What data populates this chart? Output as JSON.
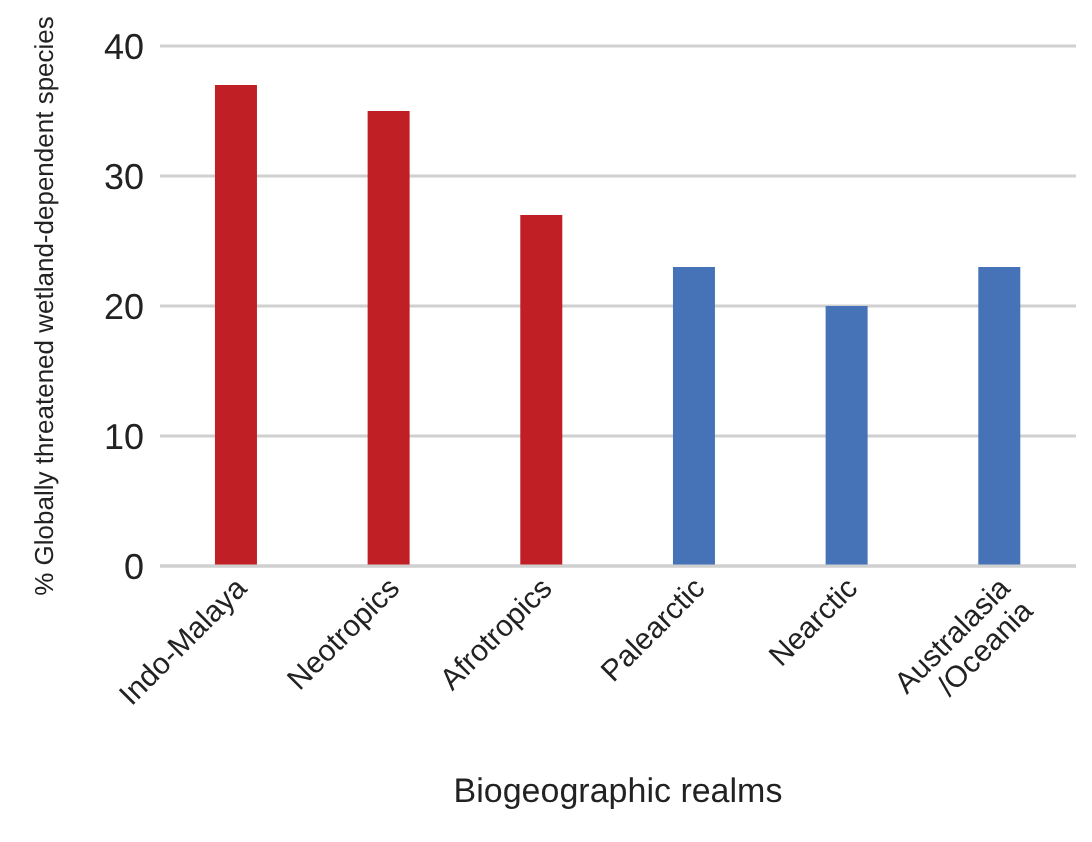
{
  "chart_data": {
    "type": "bar",
    "xlabel": "Biogeographic realms",
    "ylabel": "% Globally threatened wetland-dependent species",
    "categories": [
      "Indo-Malaya",
      "Neotropics",
      "Afrotropics",
      "Palearctic",
      "Nearctic",
      "Australasia\n/Oceania"
    ],
    "values": [
      37,
      35,
      27,
      23,
      20,
      23
    ],
    "colors": [
      "#c01f26",
      "#c01f26",
      "#c01f26",
      "#4673b8",
      "#4673b8",
      "#4673b8"
    ],
    "ylim": [
      0,
      40
    ],
    "yticks": [
      0,
      10,
      20,
      30,
      40
    ],
    "grid": "y"
  }
}
